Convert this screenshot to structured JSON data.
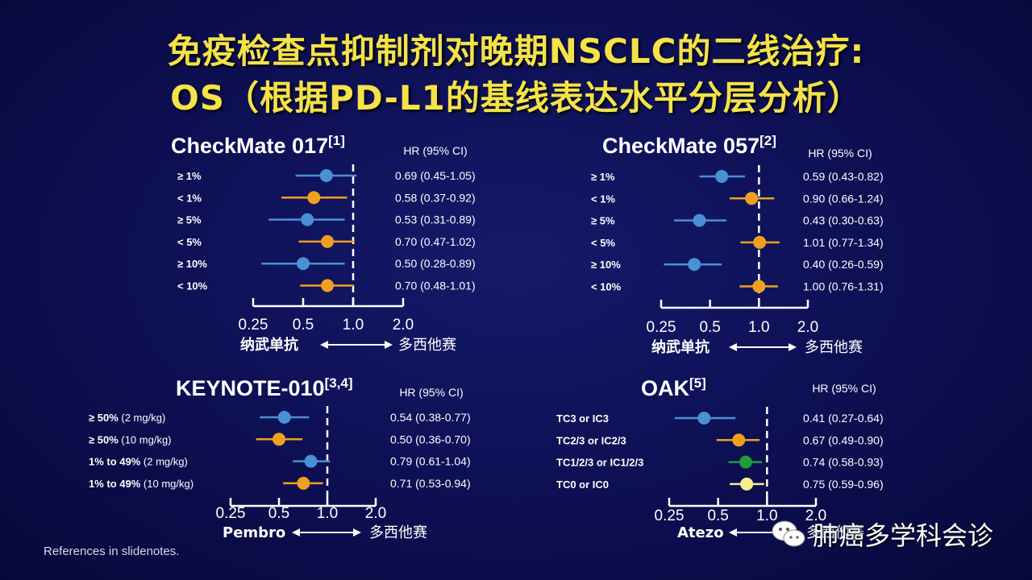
{
  "title_line1": "免疫检查点抑制剂对晚期NSCLC的二线治疗:",
  "title_line2": "OS（根据PD-L1的基线表达水平分层分析）",
  "references": "References in slidenotes.",
  "watermark": "肺癌多学科会诊",
  "colors": {
    "blue": "#4a90d4",
    "orange": "#f0a020",
    "green": "#1f9e3a",
    "yellow": "#f5f08a",
    "line": "#ffffff"
  },
  "chart_data": [
    {
      "type": "forest",
      "title": "CheckMate 017",
      "title_sup": "[1]",
      "hr_header": "HR (95% CI)",
      "xscale": "log",
      "xticks": [
        "0.25",
        "0.5",
        "1.0",
        "2.0"
      ],
      "left_label": "纳武单抗",
      "right_label": "多西他赛",
      "rows": [
        {
          "label": "≥ 1%",
          "sub": "",
          "hr": 0.69,
          "lo": 0.45,
          "hi": 1.05,
          "text": "0.69 (0.45-1.05)",
          "color": "blue"
        },
        {
          "label": "< 1%",
          "sub": "",
          "hr": 0.58,
          "lo": 0.37,
          "hi": 0.92,
          "text": "0.58 (0.37-0.92)",
          "color": "orange"
        },
        {
          "label": "≥ 5%",
          "sub": "",
          "hr": 0.53,
          "lo": 0.31,
          "hi": 0.89,
          "text": "0.53 (0.31-0.89)",
          "color": "blue"
        },
        {
          "label": "< 5%",
          "sub": "",
          "hr": 0.7,
          "lo": 0.47,
          "hi": 1.02,
          "text": "0.70 (0.47-1.02)",
          "color": "orange"
        },
        {
          "label": "≥ 10%",
          "sub": "",
          "hr": 0.5,
          "lo": 0.28,
          "hi": 0.89,
          "text": "0.50 (0.28-0.89)",
          "color": "blue"
        },
        {
          "label": "< 10%",
          "sub": "",
          "hr": 0.7,
          "lo": 0.48,
          "hi": 1.01,
          "text": "0.70 (0.48-1.01)",
          "color": "orange"
        }
      ]
    },
    {
      "type": "forest",
      "title": "CheckMate 057",
      "title_sup": "[2]",
      "hr_header": "HR (95% CI)",
      "xscale": "log",
      "xticks": [
        "0.25",
        "0.5",
        "1.0",
        "2.0"
      ],
      "left_label": "纳武单抗",
      "right_label": "多西他赛",
      "rows": [
        {
          "label": "≥ 1%",
          "sub": "",
          "hr": 0.59,
          "lo": 0.43,
          "hi": 0.82,
          "text": "0.59 (0.43-0.82)",
          "color": "blue"
        },
        {
          "label": "< 1%",
          "sub": "",
          "hr": 0.9,
          "lo": 0.66,
          "hi": 1.24,
          "text": "0.90 (0.66-1.24)",
          "color": "orange"
        },
        {
          "label": "≥ 5%",
          "sub": "",
          "hr": 0.43,
          "lo": 0.3,
          "hi": 0.63,
          "text": "0.43 (0.30-0.63)",
          "color": "blue"
        },
        {
          "label": "< 5%",
          "sub": "",
          "hr": 1.01,
          "lo": 0.77,
          "hi": 1.34,
          "text": "1.01 (0.77-1.34)",
          "color": "orange"
        },
        {
          "label": "≥ 10%",
          "sub": "",
          "hr": 0.4,
          "lo": 0.26,
          "hi": 0.59,
          "text": "0.40 (0.26-0.59)",
          "color": "blue"
        },
        {
          "label": "< 10%",
          "sub": "",
          "hr": 1.0,
          "lo": 0.76,
          "hi": 1.31,
          "text": "1.00 (0.76-1.31)",
          "color": "orange"
        }
      ]
    },
    {
      "type": "forest",
      "title": "KEYNOTE-010",
      "title_sup": "[3,4]",
      "hr_header": "HR (95% CI)",
      "xscale": "log",
      "xticks": [
        "0.25",
        "0.5",
        "1.0",
        "2.0"
      ],
      "left_label": "Pembro",
      "right_label": "多西他赛",
      "rows": [
        {
          "label": "≥ 50%",
          "sub": " (2 mg/kg)",
          "hr": 0.54,
          "lo": 0.38,
          "hi": 0.77,
          "text": "0.54 (0.38-0.77)",
          "color": "blue"
        },
        {
          "label": "≥ 50%",
          "sub": " (10 mg/kg)",
          "hr": 0.5,
          "lo": 0.36,
          "hi": 0.7,
          "text": "0.50 (0.36-0.70)",
          "color": "orange"
        },
        {
          "label": "1% to 49%",
          "sub": " (2 mg/kg)",
          "hr": 0.79,
          "lo": 0.61,
          "hi": 1.04,
          "text": "0.79 (0.61-1.04)",
          "color": "blue"
        },
        {
          "label": "1% to 49%",
          "sub": " (10 mg/kg)",
          "hr": 0.71,
          "lo": 0.53,
          "hi": 0.94,
          "text": "0.71 (0.53-0.94)",
          "color": "orange"
        }
      ]
    },
    {
      "type": "forest",
      "title": "OAK",
      "title_sup": "[5]",
      "hr_header": "HR (95% CI)",
      "xscale": "log",
      "xticks": [
        "0.25",
        "0.5",
        "1.0",
        "2.0"
      ],
      "left_label": "Atezo",
      "right_label": "多西他赛",
      "rows": [
        {
          "label": "TC3 or IC3",
          "sub": "",
          "hr": 0.41,
          "lo": 0.27,
          "hi": 0.64,
          "text": "0.41 (0.27-0.64)",
          "color": "blue"
        },
        {
          "label": "TC2/3 or IC2/3",
          "sub": "",
          "hr": 0.67,
          "lo": 0.49,
          "hi": 0.9,
          "text": "0.67 (0.49-0.90)",
          "color": "orange"
        },
        {
          "label": "TC1/2/3 or IC1/2/3",
          "sub": "",
          "hr": 0.74,
          "lo": 0.58,
          "hi": 0.93,
          "text": "0.74 (0.58-0.93)",
          "color": "green"
        },
        {
          "label": "TC0 or IC0",
          "sub": "",
          "hr": 0.75,
          "lo": 0.59,
          "hi": 0.96,
          "text": "0.75 (0.59-0.96)",
          "color": "yellow"
        }
      ]
    }
  ]
}
